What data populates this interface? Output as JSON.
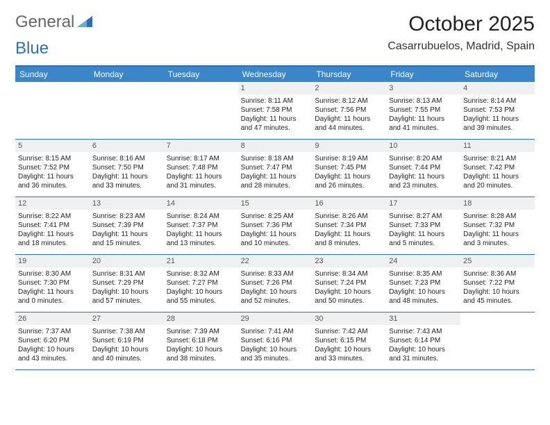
{
  "brand": {
    "part1": "General",
    "part2": "Blue"
  },
  "title": "October 2025",
  "location": "Casarrubuelos, Madrid, Spain",
  "colors": {
    "header_bar": "#3a86c8",
    "rule": "#2d6fb6",
    "daynum_bg": "#eef0f2",
    "text": "#222222",
    "bg": "#ffffff"
  },
  "dow": [
    "Sunday",
    "Monday",
    "Tuesday",
    "Wednesday",
    "Thursday",
    "Friday",
    "Saturday"
  ],
  "weeks": [
    [
      {
        "n": "",
        "sr": "",
        "ss": "",
        "dl": ""
      },
      {
        "n": "",
        "sr": "",
        "ss": "",
        "dl": ""
      },
      {
        "n": "",
        "sr": "",
        "ss": "",
        "dl": ""
      },
      {
        "n": "1",
        "sr": "Sunrise: 8:11 AM",
        "ss": "Sunset: 7:58 PM",
        "dl": "Daylight: 11 hours and 47 minutes."
      },
      {
        "n": "2",
        "sr": "Sunrise: 8:12 AM",
        "ss": "Sunset: 7:56 PM",
        "dl": "Daylight: 11 hours and 44 minutes."
      },
      {
        "n": "3",
        "sr": "Sunrise: 8:13 AM",
        "ss": "Sunset: 7:55 PM",
        "dl": "Daylight: 11 hours and 41 minutes."
      },
      {
        "n": "4",
        "sr": "Sunrise: 8:14 AM",
        "ss": "Sunset: 7:53 PM",
        "dl": "Daylight: 11 hours and 39 minutes."
      }
    ],
    [
      {
        "n": "5",
        "sr": "Sunrise: 8:15 AM",
        "ss": "Sunset: 7:52 PM",
        "dl": "Daylight: 11 hours and 36 minutes."
      },
      {
        "n": "6",
        "sr": "Sunrise: 8:16 AM",
        "ss": "Sunset: 7:50 PM",
        "dl": "Daylight: 11 hours and 33 minutes."
      },
      {
        "n": "7",
        "sr": "Sunrise: 8:17 AM",
        "ss": "Sunset: 7:48 PM",
        "dl": "Daylight: 11 hours and 31 minutes."
      },
      {
        "n": "8",
        "sr": "Sunrise: 8:18 AM",
        "ss": "Sunset: 7:47 PM",
        "dl": "Daylight: 11 hours and 28 minutes."
      },
      {
        "n": "9",
        "sr": "Sunrise: 8:19 AM",
        "ss": "Sunset: 7:45 PM",
        "dl": "Daylight: 11 hours and 26 minutes."
      },
      {
        "n": "10",
        "sr": "Sunrise: 8:20 AM",
        "ss": "Sunset: 7:44 PM",
        "dl": "Daylight: 11 hours and 23 minutes."
      },
      {
        "n": "11",
        "sr": "Sunrise: 8:21 AM",
        "ss": "Sunset: 7:42 PM",
        "dl": "Daylight: 11 hours and 20 minutes."
      }
    ],
    [
      {
        "n": "12",
        "sr": "Sunrise: 8:22 AM",
        "ss": "Sunset: 7:41 PM",
        "dl": "Daylight: 11 hours and 18 minutes."
      },
      {
        "n": "13",
        "sr": "Sunrise: 8:23 AM",
        "ss": "Sunset: 7:39 PM",
        "dl": "Daylight: 11 hours and 15 minutes."
      },
      {
        "n": "14",
        "sr": "Sunrise: 8:24 AM",
        "ss": "Sunset: 7:37 PM",
        "dl": "Daylight: 11 hours and 13 minutes."
      },
      {
        "n": "15",
        "sr": "Sunrise: 8:25 AM",
        "ss": "Sunset: 7:36 PM",
        "dl": "Daylight: 11 hours and 10 minutes."
      },
      {
        "n": "16",
        "sr": "Sunrise: 8:26 AM",
        "ss": "Sunset: 7:34 PM",
        "dl": "Daylight: 11 hours and 8 minutes."
      },
      {
        "n": "17",
        "sr": "Sunrise: 8:27 AM",
        "ss": "Sunset: 7:33 PM",
        "dl": "Daylight: 11 hours and 5 minutes."
      },
      {
        "n": "18",
        "sr": "Sunrise: 8:28 AM",
        "ss": "Sunset: 7:32 PM",
        "dl": "Daylight: 11 hours and 3 minutes."
      }
    ],
    [
      {
        "n": "19",
        "sr": "Sunrise: 8:30 AM",
        "ss": "Sunset: 7:30 PM",
        "dl": "Daylight: 11 hours and 0 minutes."
      },
      {
        "n": "20",
        "sr": "Sunrise: 8:31 AM",
        "ss": "Sunset: 7:29 PM",
        "dl": "Daylight: 10 hours and 57 minutes."
      },
      {
        "n": "21",
        "sr": "Sunrise: 8:32 AM",
        "ss": "Sunset: 7:27 PM",
        "dl": "Daylight: 10 hours and 55 minutes."
      },
      {
        "n": "22",
        "sr": "Sunrise: 8:33 AM",
        "ss": "Sunset: 7:26 PM",
        "dl": "Daylight: 10 hours and 52 minutes."
      },
      {
        "n": "23",
        "sr": "Sunrise: 8:34 AM",
        "ss": "Sunset: 7:24 PM",
        "dl": "Daylight: 10 hours and 50 minutes."
      },
      {
        "n": "24",
        "sr": "Sunrise: 8:35 AM",
        "ss": "Sunset: 7:23 PM",
        "dl": "Daylight: 10 hours and 48 minutes."
      },
      {
        "n": "25",
        "sr": "Sunrise: 8:36 AM",
        "ss": "Sunset: 7:22 PM",
        "dl": "Daylight: 10 hours and 45 minutes."
      }
    ],
    [
      {
        "n": "26",
        "sr": "Sunrise: 7:37 AM",
        "ss": "Sunset: 6:20 PM",
        "dl": "Daylight: 10 hours and 43 minutes."
      },
      {
        "n": "27",
        "sr": "Sunrise: 7:38 AM",
        "ss": "Sunset: 6:19 PM",
        "dl": "Daylight: 10 hours and 40 minutes."
      },
      {
        "n": "28",
        "sr": "Sunrise: 7:39 AM",
        "ss": "Sunset: 6:18 PM",
        "dl": "Daylight: 10 hours and 38 minutes."
      },
      {
        "n": "29",
        "sr": "Sunrise: 7:41 AM",
        "ss": "Sunset: 6:16 PM",
        "dl": "Daylight: 10 hours and 35 minutes."
      },
      {
        "n": "30",
        "sr": "Sunrise: 7:42 AM",
        "ss": "Sunset: 6:15 PM",
        "dl": "Daylight: 10 hours and 33 minutes."
      },
      {
        "n": "31",
        "sr": "Sunrise: 7:43 AM",
        "ss": "Sunset: 6:14 PM",
        "dl": "Daylight: 10 hours and 31 minutes."
      },
      {
        "n": "",
        "sr": "",
        "ss": "",
        "dl": ""
      }
    ]
  ]
}
